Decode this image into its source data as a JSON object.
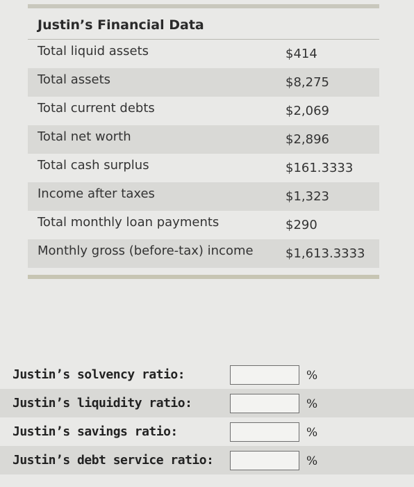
{
  "financial_table": {
    "title": "Justin’s Financial Data",
    "rows": [
      {
        "label": "Total liquid assets",
        "value": "$414"
      },
      {
        "label": "Total assets",
        "value": "$8,275"
      },
      {
        "label": "Total current debts",
        "value": "$2,069"
      },
      {
        "label": "Total net worth",
        "value": "$2,896"
      },
      {
        "label": "Total cash surplus",
        "value": "$161.3333"
      },
      {
        "label": "Income after taxes",
        "value": "$1,323"
      },
      {
        "label": "Total monthly loan payments",
        "value": "$290"
      },
      {
        "label": "Monthly gross (before-tax) income",
        "value": "$1,613.3333"
      }
    ]
  },
  "ratios": {
    "unit": "%",
    "items": [
      {
        "label": "Justin’s solvency ratio:",
        "value": ""
      },
      {
        "label": "Justin’s liquidity ratio:",
        "value": ""
      },
      {
        "label": "Justin’s savings ratio:",
        "value": ""
      },
      {
        "label": "Justin’s debt service ratio:",
        "value": ""
      }
    ]
  }
}
